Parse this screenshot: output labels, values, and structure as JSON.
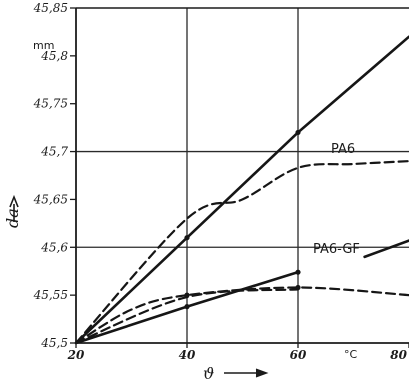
{
  "chart_data": {
    "type": "line",
    "xlabel": "ϑ",
    "ylabel": "da",
    "x_unit": "°C",
    "y_unit": "mm",
    "xlim": [
      20,
      80
    ],
    "ylim": [
      45.5,
      45.85
    ],
    "x_ticks": [
      "20",
      "40",
      "60",
      "80"
    ],
    "y_ticks": [
      "45,5",
      "45,55",
      "45,6",
      "45,65",
      "45,7",
      "45,75",
      "45,8",
      "45,85"
    ],
    "grid": true,
    "series": [
      {
        "name": "PA6",
        "style": "solid",
        "points": [
          [
            20,
            45.5
          ],
          [
            40,
            45.61
          ],
          [
            60,
            45.72
          ],
          [
            80,
            45.82
          ]
        ]
      },
      {
        "name": "PA6",
        "style": "dashed",
        "points": [
          [
            20,
            45.5
          ],
          [
            40,
            45.63
          ],
          [
            50,
            45.65
          ],
          [
            60,
            45.683
          ],
          [
            70,
            45.687
          ],
          [
            80,
            45.69
          ]
        ]
      },
      {
        "name": "PA6-GF",
        "style": "solid",
        "points": [
          [
            20,
            45.5
          ],
          [
            40,
            45.538
          ],
          [
            60,
            45.574
          ]
        ]
      },
      {
        "name": "PA6-GF",
        "style": "solid",
        "points": [
          [
            72,
            45.59
          ],
          [
            80,
            45.607
          ]
        ]
      },
      {
        "name": "PA6-GF",
        "style": "dashed",
        "points": [
          [
            20,
            45.5
          ],
          [
            30,
            45.535
          ],
          [
            40,
            45.55
          ],
          [
            60,
            45.558
          ],
          [
            80,
            45.55
          ]
        ]
      },
      {
        "name": "",
        "style": "dashed",
        "points": [
          [
            20,
            45.5
          ],
          [
            40,
            45.548
          ],
          [
            60,
            45.556
          ]
        ]
      }
    ],
    "markers": [
      [
        40,
        45.61
      ],
      [
        60,
        45.72
      ],
      [
        40,
        45.538
      ],
      [
        60,
        45.574
      ],
      [
        40,
        45.55
      ],
      [
        60,
        45.558
      ]
    ],
    "labels": [
      "PA6",
      "PA6-GF"
    ]
  }
}
